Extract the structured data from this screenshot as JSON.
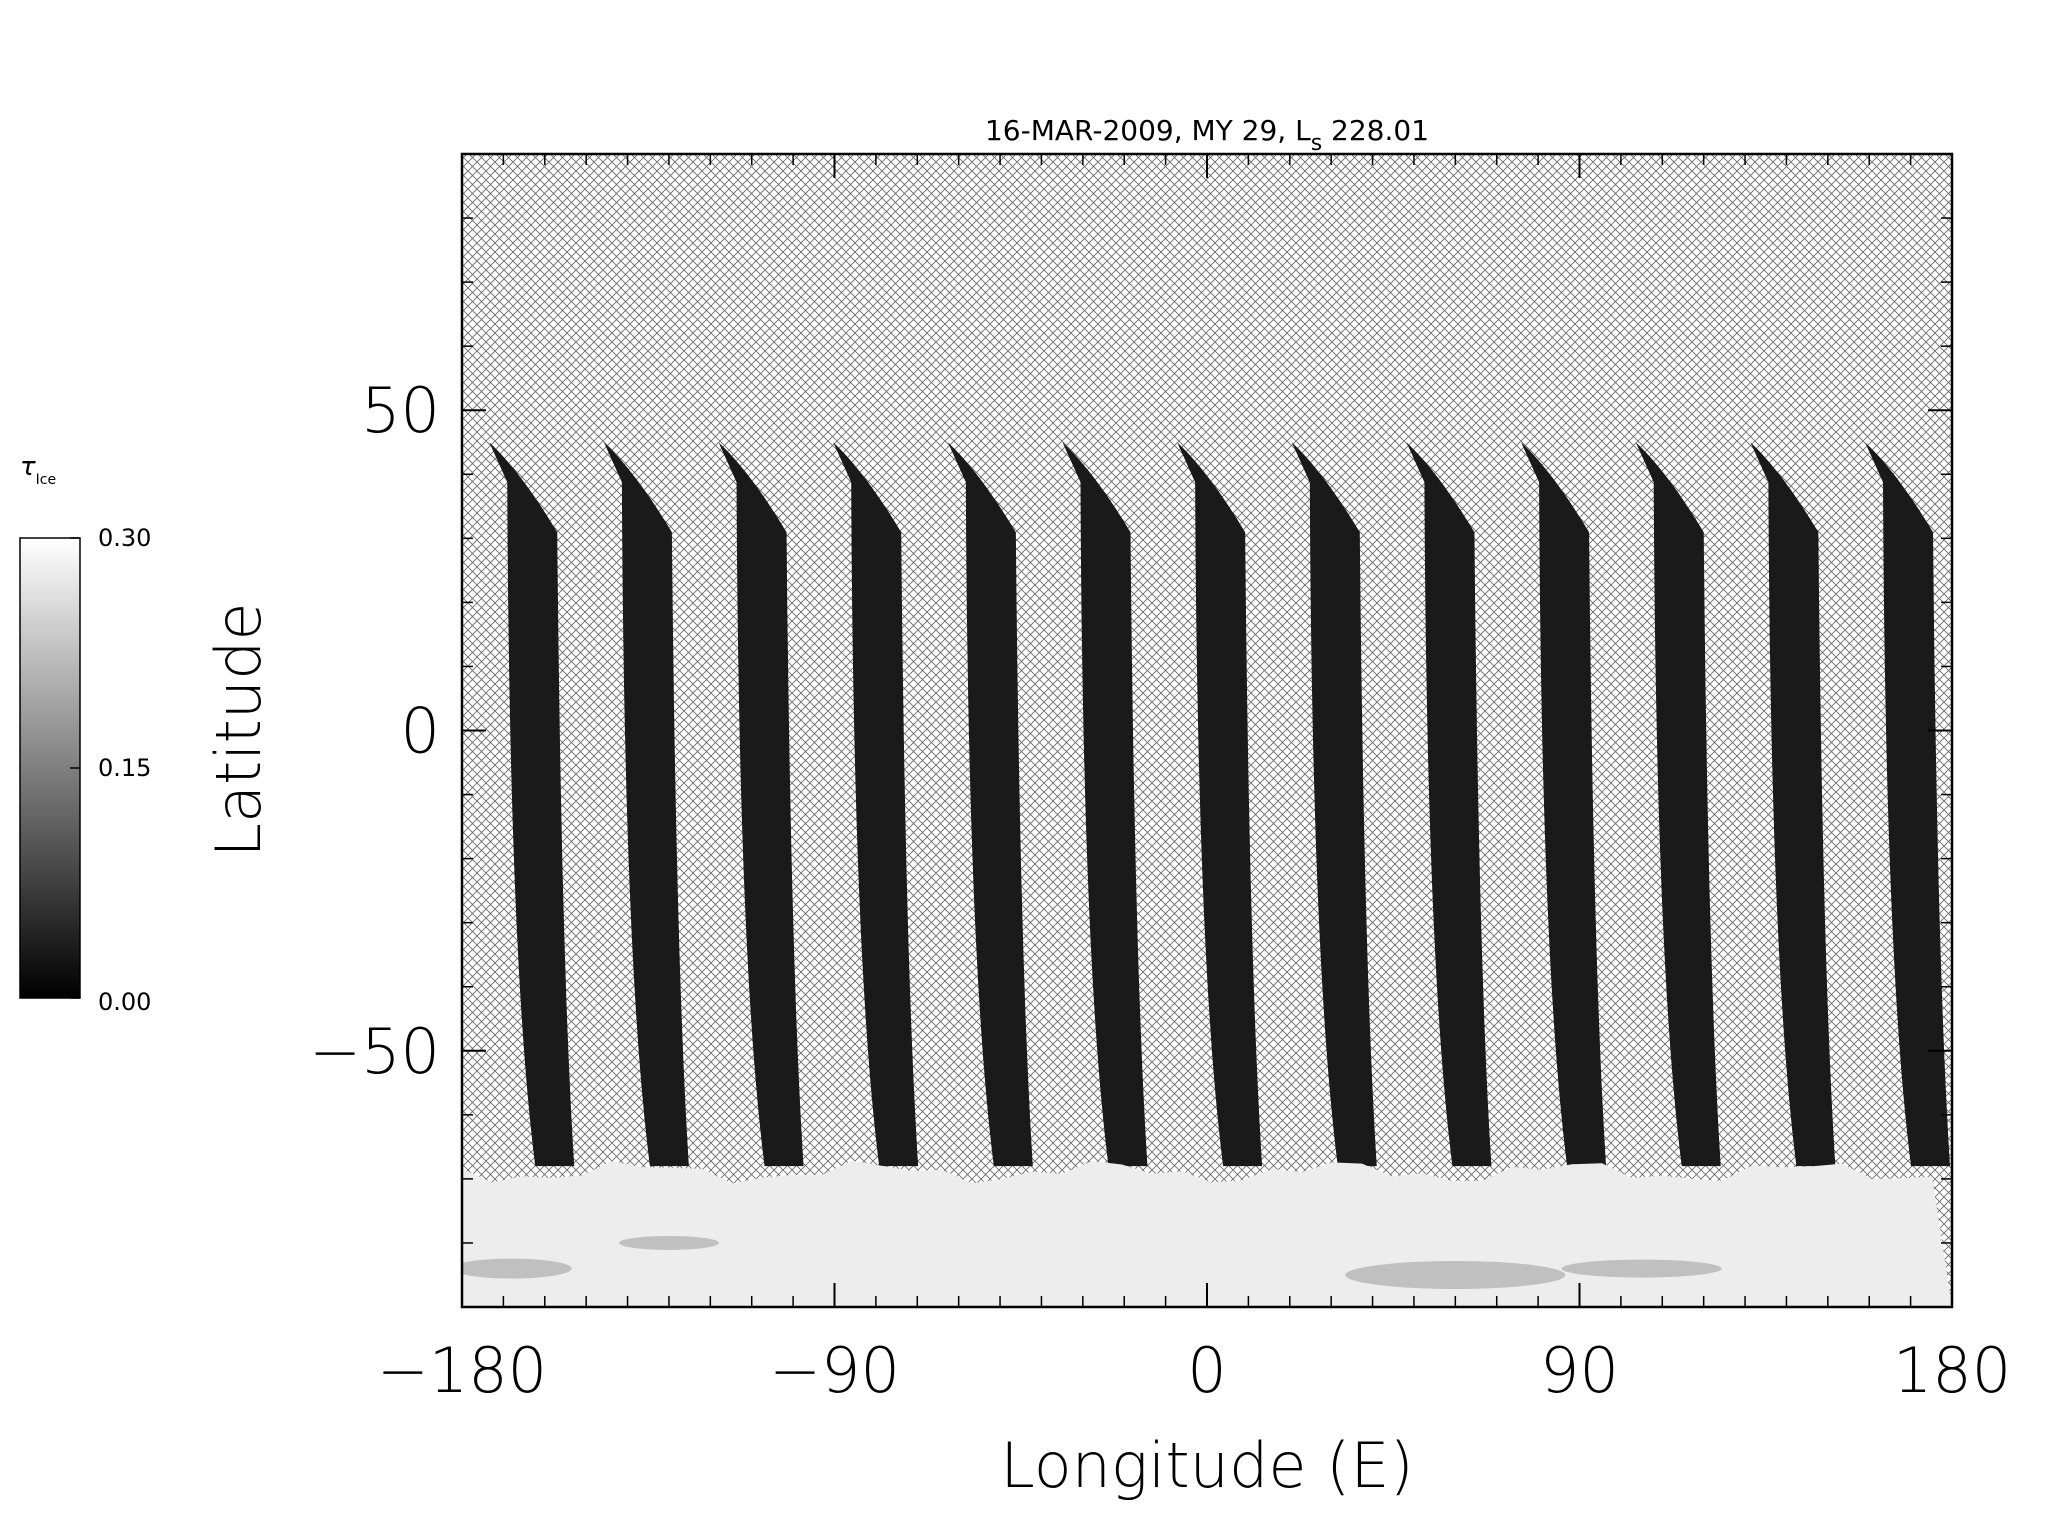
{
  "chart_data": {
    "type": "heatmap",
    "title_prefix": "16-MAR-2009, MY 29,  L",
    "title_sub": "s",
    "title_suffix": " 228.01",
    "xlabel": "Longitude (E)",
    "ylabel": "Latitude",
    "xlim": [
      -180,
      180
    ],
    "ylim": [
      -90,
      90
    ],
    "x_ticks": [
      -180,
      -90,
      0,
      90,
      180
    ],
    "x_tick_labels": [
      "−180",
      "−90",
      "0",
      "90",
      "180"
    ],
    "y_ticks": [
      -50,
      0,
      50
    ],
    "y_tick_labels": [
      "−50",
      "0",
      "50"
    ],
    "colorbar": {
      "label": "τ",
      "label_sub": "Ice",
      "min": 0.0,
      "max": 0.3,
      "tick_values": [
        0.3,
        0.15,
        0.0
      ],
      "tick_labels": [
        "0.30",
        "0.15",
        "0.00"
      ],
      "colormap": "grayscale"
    },
    "swaths": {
      "count": 13,
      "top_latitude": 45,
      "bottom_latitude": -68,
      "first_top_longitude": -171,
      "longitude_spacing": 27.7,
      "south_polar_ice_boundary": -68,
      "ice_optical_depth_in_swaths": 0.02,
      "ice_optical_depth_south_polar": 0.29
    },
    "no_data_fill": "crosshatch"
  },
  "colors": {
    "swath": "#141414",
    "polar_hood": "#f4f4f4",
    "hatch": "#6a6a6a",
    "axis": "#000000"
  }
}
